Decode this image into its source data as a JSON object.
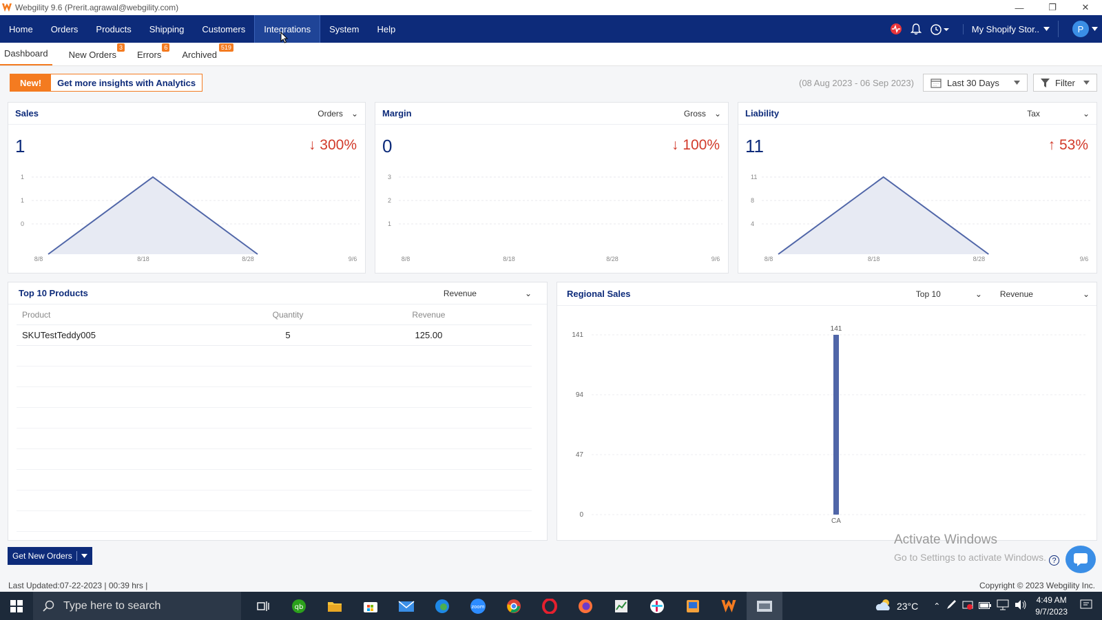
{
  "window": {
    "title": "Webgility 9.6 (Prerit.agrawal@webgility.com)"
  },
  "nav": {
    "items": [
      "Home",
      "Orders",
      "Products",
      "Shipping",
      "Customers",
      "Integrations",
      "System",
      "Help"
    ],
    "active": "Integrations",
    "store": "My Shopify Stor..",
    "avatar": "P"
  },
  "subtabs": {
    "dashboard": "Dashboard",
    "new_orders": "New Orders",
    "new_orders_count": "3",
    "errors": "Errors",
    "errors_count": "6",
    "archived": "Archived",
    "archived_count": "519"
  },
  "promo": {
    "new": "New!",
    "text": "Get more insights with Analytics"
  },
  "date_range": "(08 Aug 2023 - 06 Sep 2023)",
  "period": "Last 30 Days",
  "filter": "Filter",
  "sales": {
    "title": "Sales",
    "selector": "Orders",
    "value": "1",
    "change": "300%",
    "chart_data": {
      "type": "area",
      "x": [
        "8/8",
        "8/18",
        "8/28",
        "9/6"
      ],
      "ytick_labels": [
        "1",
        "1",
        "0"
      ],
      "points": [
        [
          0,
          0
        ],
        [
          1,
          1
        ],
        [
          2,
          0
        ]
      ]
    }
  },
  "margin": {
    "title": "Margin",
    "selector": "Gross",
    "value": "0",
    "change": "100%",
    "chart_data": {
      "type": "line",
      "x": [
        "8/8",
        "8/18",
        "8/28",
        "9/6"
      ],
      "ytick_labels": [
        "3",
        "2",
        "1"
      ],
      "points": []
    }
  },
  "liability": {
    "title": "Liability",
    "selector": "Tax",
    "value": "11",
    "change": "53%",
    "chart_data": {
      "type": "area",
      "x": [
        "8/8",
        "8/18",
        "8/28",
        "9/6"
      ],
      "ytick_labels": [
        "11",
        "8",
        "4"
      ],
      "points": [
        [
          0,
          0
        ],
        [
          1,
          11
        ],
        [
          2,
          0
        ]
      ]
    }
  },
  "top_products": {
    "title": "Top 10 Products",
    "selector": "Revenue",
    "headers": [
      "Product",
      "Quantity",
      "Revenue"
    ],
    "rows": [
      [
        "SKUTestTeddy005",
        "5",
        "125.00"
      ]
    ]
  },
  "regional": {
    "title": "Regional Sales",
    "top_selector": "Top 10",
    "metric_selector": "Revenue",
    "chart_data": {
      "type": "bar",
      "categories": [
        "CA"
      ],
      "values": [
        141
      ],
      "yticks": [
        0,
        47,
        94,
        141
      ],
      "ylim": [
        0,
        141
      ]
    }
  },
  "footer": {
    "get_orders": "Get New Orders",
    "last_updated": "Last Updated:07-22-2023 | 00:39 hrs |",
    "copyright": "Copyright © 2023 Webgility Inc.",
    "watermark_title": "Activate Windows",
    "watermark_sub": "Go to Settings to activate Windows."
  },
  "taskbar": {
    "search_placeholder": "Type here to search",
    "weather": "23°C",
    "time": "4:49 AM",
    "date": "9/7/2023"
  }
}
